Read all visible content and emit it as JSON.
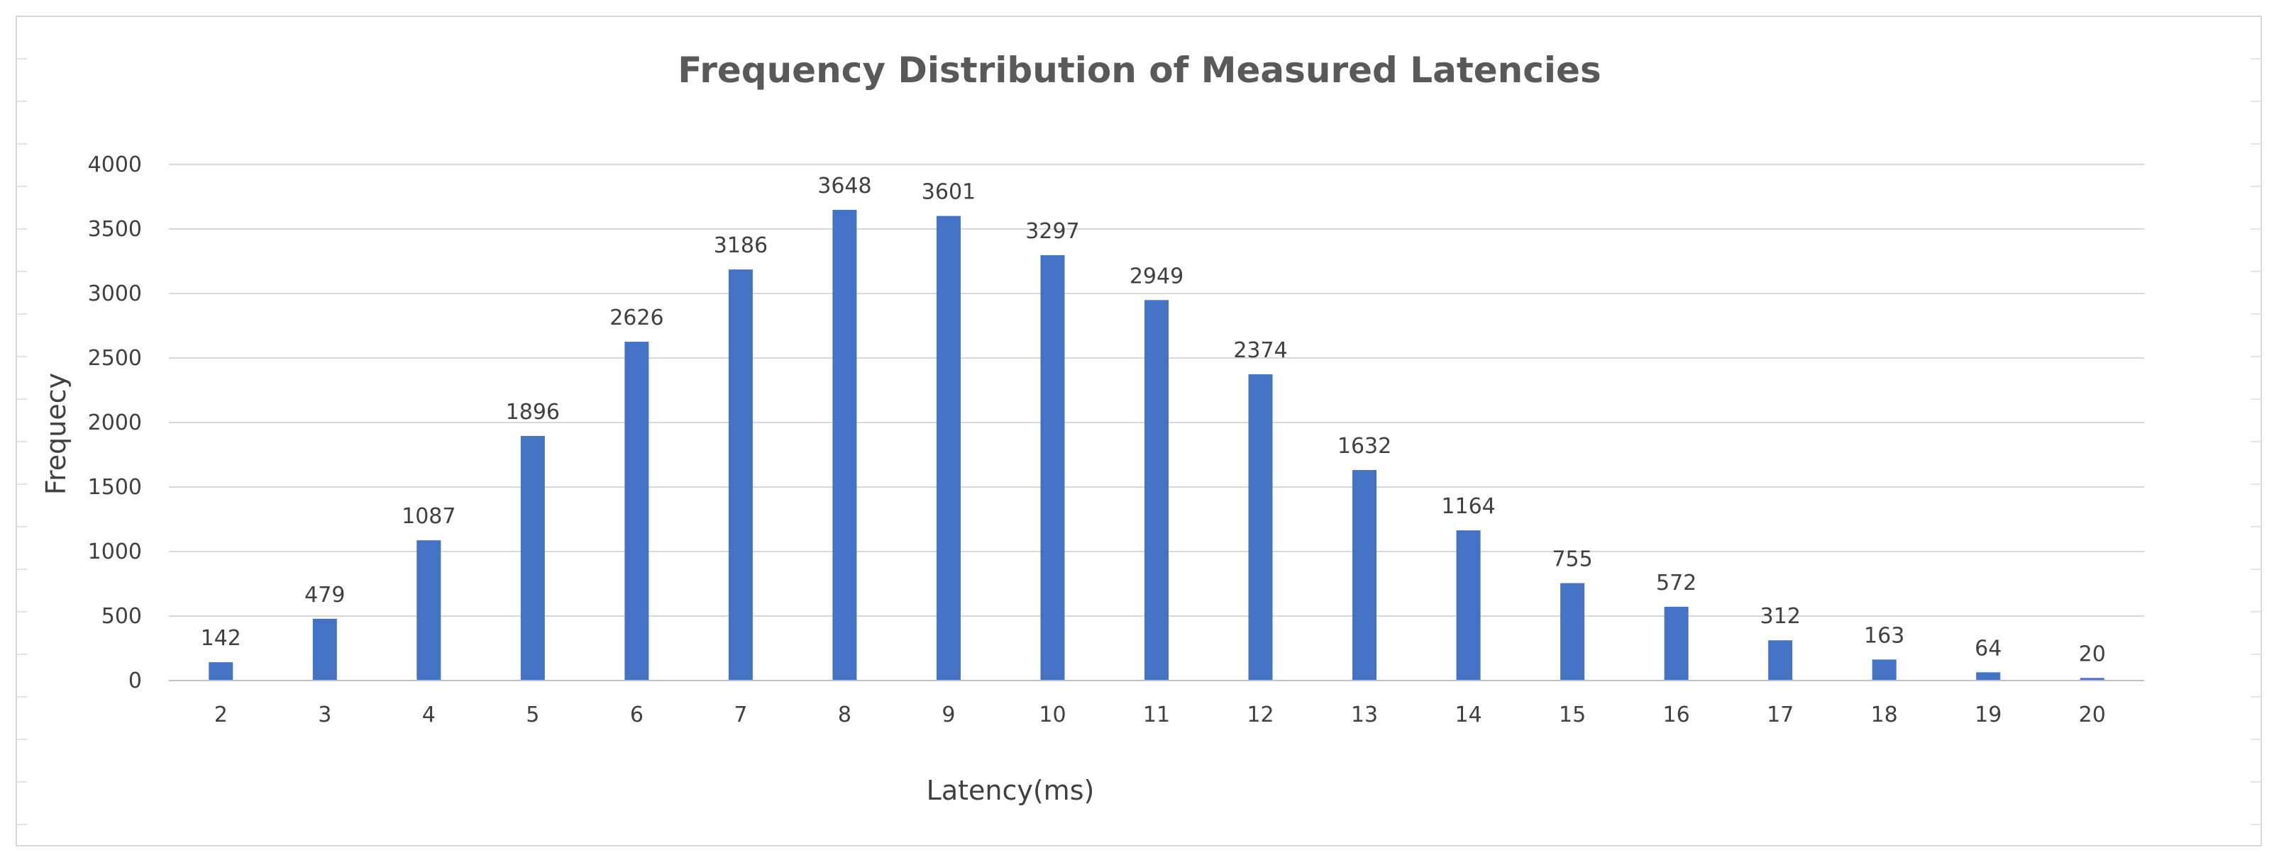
{
  "chart_data": {
    "type": "bar",
    "title": "Frequency Distribution of Measured Latencies",
    "xlabel": "Latency(ms)",
    "ylabel": "Frequecy",
    "categories": [
      "2",
      "3",
      "4",
      "5",
      "6",
      "7",
      "8",
      "9",
      "10",
      "11",
      "12",
      "13",
      "14",
      "15",
      "16",
      "17",
      "18",
      "19",
      "20"
    ],
    "values": [
      142,
      479,
      1087,
      1896,
      2626,
      3186,
      3648,
      3601,
      3297,
      2949,
      2374,
      1632,
      1164,
      755,
      572,
      312,
      163,
      64,
      20
    ],
    "ylim": [
      0,
      4000
    ],
    "yticks": [
      0,
      500,
      1000,
      1500,
      2000,
      2500,
      3000,
      3500,
      4000
    ],
    "grid": true,
    "legend": "none",
    "data_labels": true,
    "colors": {
      "bar": "#4472c4",
      "grid": "#d9d9d9",
      "axis": "#bfbfbf"
    }
  }
}
